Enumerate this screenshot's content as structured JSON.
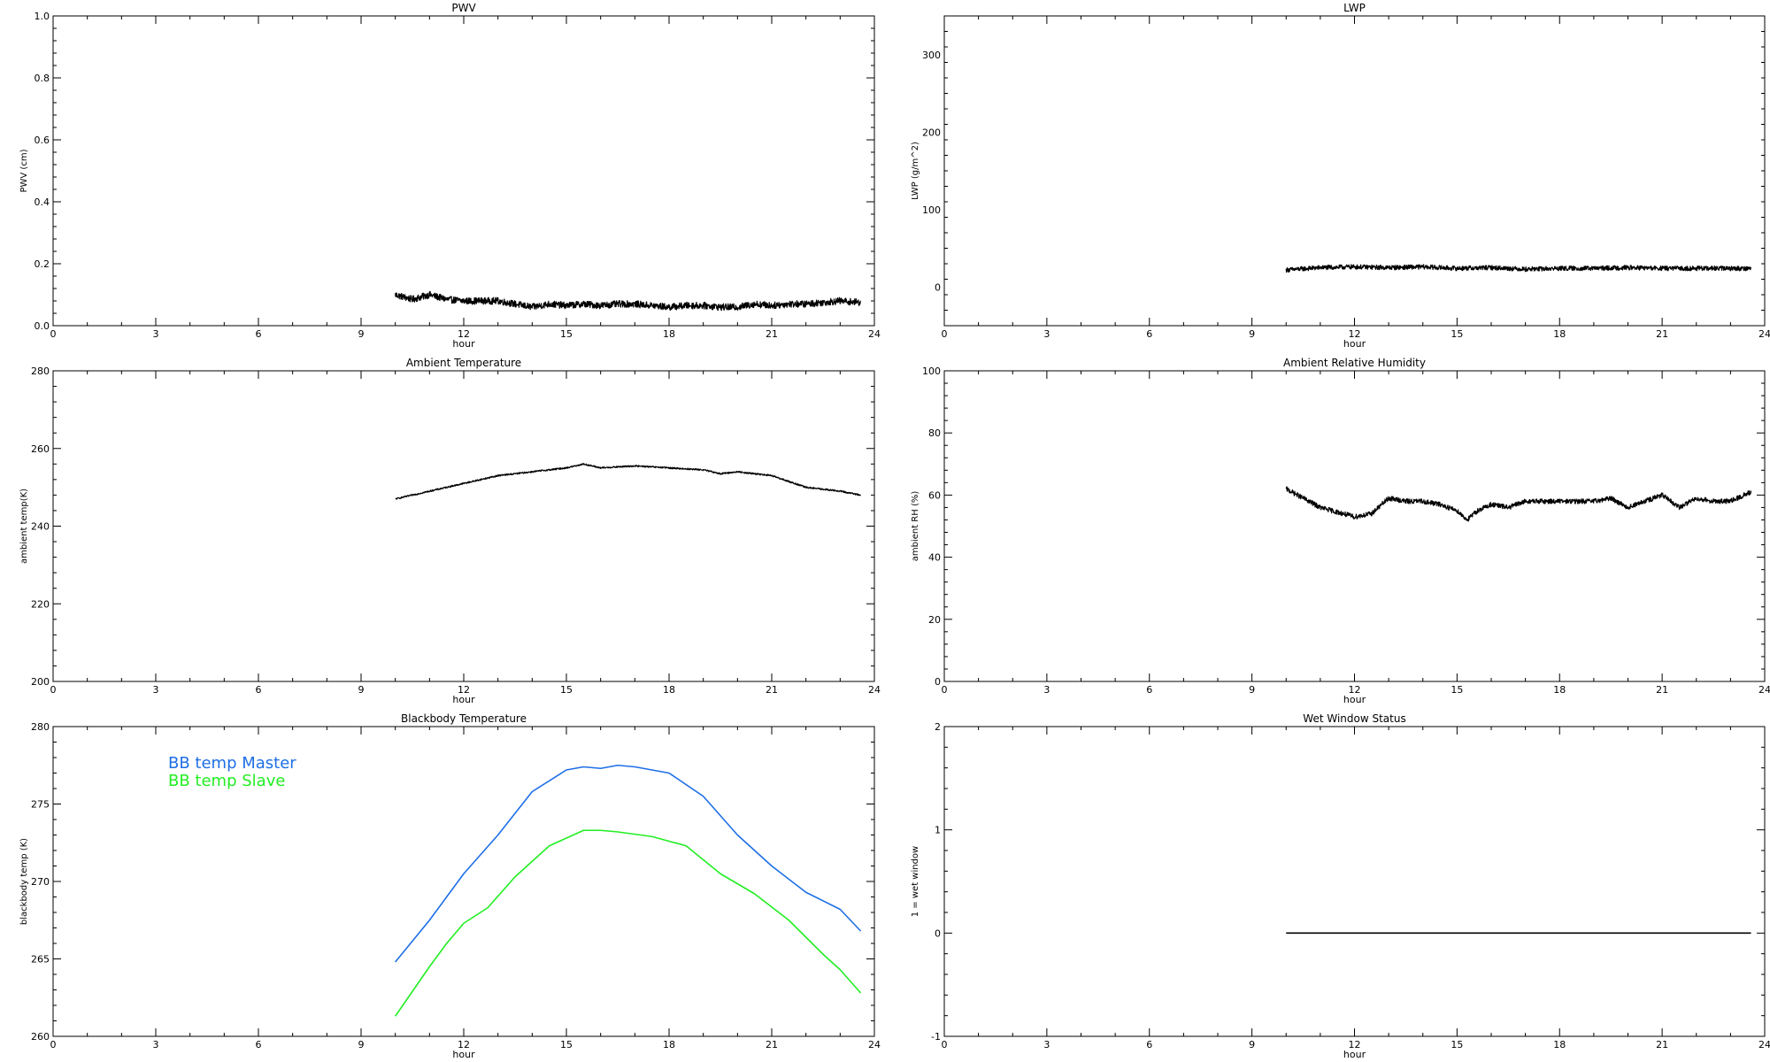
{
  "chart_data": [
    {
      "type": "line",
      "title": "PWV",
      "xlabel": "hour",
      "ylabel": "PWV (cm)",
      "xlim": [
        0,
        24
      ],
      "ylim": [
        0,
        1
      ],
      "xticks": [
        0,
        3,
        6,
        9,
        12,
        15,
        18,
        21,
        24
      ],
      "yticks": [
        0.0,
        0.2,
        0.4,
        0.6,
        0.8,
        1.0
      ],
      "ytick_labels": [
        "0.0",
        "0.2",
        "0.4",
        "0.6",
        "0.8",
        "1.0"
      ],
      "series": [
        {
          "color": "#000000",
          "noise": 0.011,
          "x": [
            10.0,
            10.5,
            11.0,
            11.5,
            12.0,
            12.5,
            13.0,
            13.5,
            14.0,
            14.5,
            15.0,
            15.5,
            16.0,
            16.5,
            17.0,
            17.5,
            18.0,
            18.5,
            19.0,
            19.5,
            20.0,
            20.5,
            21.0,
            21.5,
            22.0,
            22.5,
            23.0,
            23.6
          ],
          "y": [
            0.1,
            0.085,
            0.1,
            0.085,
            0.08,
            0.08,
            0.08,
            0.07,
            0.06,
            0.07,
            0.065,
            0.07,
            0.065,
            0.07,
            0.07,
            0.065,
            0.06,
            0.065,
            0.065,
            0.06,
            0.06,
            0.07,
            0.065,
            0.07,
            0.07,
            0.075,
            0.08,
            0.075
          ]
        }
      ]
    },
    {
      "type": "line",
      "title": "LWP",
      "xlabel": "hour",
      "ylabel": "LWP (g/m^2)",
      "xlim": [
        0,
        24
      ],
      "ylim": [
        -50,
        350
      ],
      "xticks": [
        0,
        3,
        6,
        9,
        12,
        15,
        18,
        21,
        24
      ],
      "yticks": [
        0,
        100,
        200,
        300
      ],
      "ytick_labels": [
        "0",
        "100",
        "200",
        "300"
      ],
      "series": [
        {
          "color": "#000000",
          "noise": 3,
          "x": [
            10.0,
            11.0,
            12.0,
            13.0,
            14.0,
            15.0,
            16.0,
            17.0,
            18.0,
            19.0,
            20.0,
            21.0,
            22.0,
            23.0,
            23.6
          ],
          "y": [
            22,
            25,
            26,
            25,
            26,
            24,
            25,
            23,
            24,
            24,
            25,
            24,
            24,
            24,
            24
          ]
        }
      ]
    },
    {
      "type": "line",
      "title": "Ambient Temperature",
      "xlabel": "hour",
      "ylabel": "ambient temp(K)",
      "xlim": [
        0,
        24
      ],
      "ylim": [
        200,
        280
      ],
      "xticks": [
        0,
        3,
        6,
        9,
        12,
        15,
        18,
        21,
        24
      ],
      "yticks": [
        200,
        220,
        240,
        260,
        280
      ],
      "ytick_labels": [
        "200",
        "220",
        "240",
        "260",
        "280"
      ],
      "series": [
        {
          "color": "#000000",
          "noise": 0.2,
          "x": [
            10.0,
            11.0,
            12.0,
            13.0,
            14.0,
            15.0,
            15.5,
            16.0,
            17.0,
            18.0,
            19.0,
            19.5,
            20.0,
            21.0,
            22.0,
            23.0,
            23.6
          ],
          "y": [
            247,
            249,
            251,
            253,
            254,
            255,
            256,
            255,
            255.5,
            255,
            254.5,
            253.5,
            254,
            253,
            250,
            249,
            248
          ]
        }
      ]
    },
    {
      "type": "line",
      "title": "Ambient Relative Humidity",
      "xlabel": "hour",
      "ylabel": "ambient RH (%)",
      "xlim": [
        0,
        24
      ],
      "ylim": [
        0,
        100
      ],
      "xticks": [
        0,
        3,
        6,
        9,
        12,
        15,
        18,
        21,
        24
      ],
      "yticks": [
        0,
        20,
        40,
        60,
        80,
        100
      ],
      "ytick_labels": [
        "0",
        "20",
        "40",
        "60",
        "80",
        "100"
      ],
      "series": [
        {
          "color": "#000000",
          "noise": 0.8,
          "x": [
            10.0,
            10.5,
            11.0,
            12.0,
            12.5,
            13.0,
            13.5,
            14.0,
            14.5,
            15.0,
            15.3,
            15.6,
            16.0,
            16.5,
            17.0,
            18.0,
            19.0,
            19.5,
            20.0,
            20.5,
            21.0,
            21.5,
            22.0,
            22.5,
            23.0,
            23.6
          ],
          "y": [
            62,
            59,
            56,
            53,
            54,
            59,
            58,
            58,
            57,
            55,
            52,
            55,
            57,
            56,
            58,
            58,
            58,
            59,
            56,
            58,
            60,
            56,
            59,
            58,
            58,
            61
          ]
        }
      ]
    },
    {
      "type": "line",
      "title": "Blackbody Temperature",
      "xlabel": "hour",
      "ylabel": "blackbody temp (K)",
      "xlim": [
        0,
        24
      ],
      "ylim": [
        260,
        280
      ],
      "xticks": [
        0,
        3,
        6,
        9,
        12,
        15,
        18,
        21,
        24
      ],
      "yticks": [
        260,
        265,
        270,
        275,
        280
      ],
      "ytick_labels": [
        "260",
        "265",
        "270",
        "275",
        "280"
      ],
      "legend_position": "top-left",
      "series": [
        {
          "name": "BB temp Master",
          "color": "#1e6fe6",
          "x": [
            10.0,
            11.0,
            12.0,
            13.0,
            14.0,
            15.0,
            15.5,
            16.0,
            16.5,
            17.0,
            18.0,
            19.0,
            20.0,
            21.0,
            22.0,
            23.0,
            23.6
          ],
          "y": [
            264.8,
            267.5,
            270.5,
            273.0,
            275.8,
            277.2,
            277.4,
            277.3,
            277.5,
            277.4,
            277.0,
            275.5,
            273.0,
            271.0,
            269.3,
            268.2,
            266.8
          ]
        },
        {
          "name": "BB temp Slave",
          "color": "#22ee22",
          "x": [
            10.0,
            11.0,
            11.5,
            12.0,
            12.7,
            13.5,
            14.5,
            15.5,
            16.0,
            16.5,
            17.5,
            18.5,
            19.5,
            20.5,
            21.5,
            22.5,
            23.0,
            23.6
          ],
          "y": [
            261.3,
            264.5,
            266.0,
            267.3,
            268.3,
            270.3,
            272.3,
            273.3,
            273.3,
            273.2,
            272.9,
            272.3,
            270.5,
            269.2,
            267.5,
            265.3,
            264.3,
            262.8
          ]
        }
      ]
    },
    {
      "type": "line",
      "title": "Wet Window Status",
      "xlabel": "hour",
      "ylabel": "1 = wet window",
      "xlim": [
        0,
        24
      ],
      "ylim": [
        -1,
        2
      ],
      "xticks": [
        0,
        3,
        6,
        9,
        12,
        15,
        18,
        21,
        24
      ],
      "yticks": [
        -1,
        0,
        1,
        2
      ],
      "ytick_labels": [
        "-1",
        "0",
        "1",
        "2"
      ],
      "series": [
        {
          "color": "#000000",
          "x": [
            10.0,
            23.6
          ],
          "y": [
            0,
            0
          ]
        }
      ]
    }
  ]
}
